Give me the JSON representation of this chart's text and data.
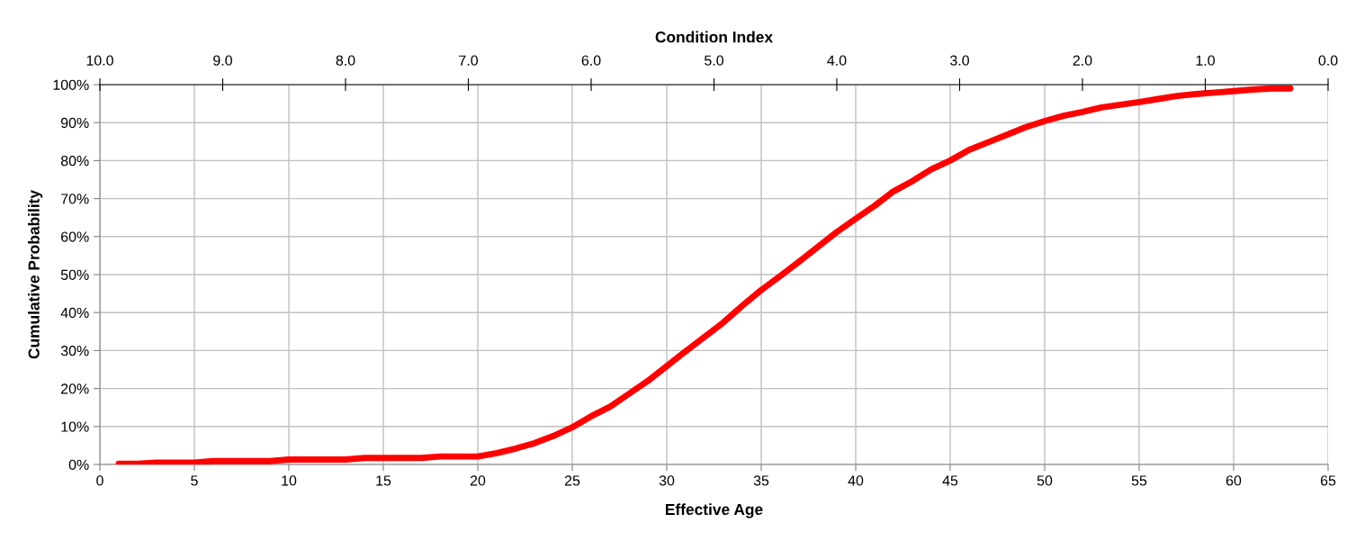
{
  "chart_data": {
    "type": "line",
    "xlabel": "Effective Age",
    "ylabel": "Cumulative Probability",
    "x2label": "Condition Index",
    "x": [
      1,
      2,
      3,
      4,
      5,
      6,
      7,
      8,
      9,
      10,
      11,
      12,
      13,
      14,
      15,
      16,
      17,
      18,
      19,
      20,
      21,
      22,
      23,
      24,
      25,
      26,
      27,
      28,
      29,
      30,
      31,
      32,
      33,
      34,
      35,
      36,
      37,
      38,
      39,
      40,
      41,
      42,
      43,
      44,
      45,
      46,
      47,
      48,
      49,
      50,
      51,
      52,
      53,
      54,
      55,
      56,
      57,
      58,
      59,
      60,
      61,
      62,
      63
    ],
    "series": [
      {
        "color": "#ff0000",
        "values": [
          0.2,
          0.2,
          0.5,
          0.5,
          0.5,
          0.9,
          0.9,
          0.9,
          0.9,
          1.3,
          1.3,
          1.3,
          1.3,
          1.7,
          1.7,
          1.7,
          1.7,
          2.1,
          2.1,
          2.1,
          3,
          4.2,
          5.6,
          7.5,
          9.8,
          12.7,
          15.2,
          18.6,
          22,
          25.9,
          29.8,
          33.6,
          37.4,
          41.8,
          45.9,
          49.6,
          53.4,
          57.3,
          61.2,
          64.7,
          68.1,
          71.9,
          74.6,
          77.7,
          80,
          82.8,
          84.8,
          86.8,
          88.8,
          90.4,
          91.8,
          92.8,
          94,
          94.7,
          95.4,
          96.2,
          97,
          97.5,
          97.9,
          98.3,
          98.7,
          99,
          99
        ]
      }
    ],
    "xlim": [
      0,
      65
    ],
    "xticks": [
      0,
      5,
      10,
      15,
      20,
      25,
      30,
      35,
      40,
      45,
      50,
      55,
      60,
      65
    ],
    "ylim": [
      0,
      100
    ],
    "yticks": [
      {
        "value": 0,
        "label": "0%"
      },
      {
        "value": 10,
        "label": "10%"
      },
      {
        "value": 20,
        "label": "20%"
      },
      {
        "value": 30,
        "label": "30%"
      },
      {
        "value": 40,
        "label": "40%"
      },
      {
        "value": 50,
        "label": "50%"
      },
      {
        "value": 60,
        "label": "60%"
      },
      {
        "value": 70,
        "label": "70%"
      },
      {
        "value": 80,
        "label": "80%"
      },
      {
        "value": 90,
        "label": "90%"
      },
      {
        "value": 100,
        "label": "100%"
      }
    ],
    "x2lim": [
      10,
      0
    ],
    "x2ticks": [
      {
        "value": 10,
        "label": "10.0"
      },
      {
        "value": 9,
        "label": "9.0"
      },
      {
        "value": 8,
        "label": "8.0"
      },
      {
        "value": 7,
        "label": "7.0"
      },
      {
        "value": 6,
        "label": "6.0"
      },
      {
        "value": 5,
        "label": "5.0"
      },
      {
        "value": 4,
        "label": "4.0"
      },
      {
        "value": 3,
        "label": "3.0"
      },
      {
        "value": 2,
        "label": "2.0"
      },
      {
        "value": 1,
        "label": "1.0"
      },
      {
        "value": 0,
        "label": "0.0"
      }
    ],
    "grid": true,
    "marker": "none",
    "line_style": "solid",
    "legend": false
  }
}
